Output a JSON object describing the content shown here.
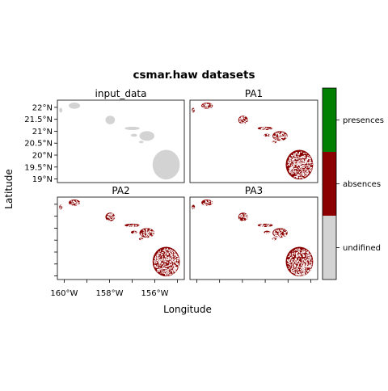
{
  "title": "csmar.haw datasets",
  "xlabel": "Longitude",
  "ylabel": "Latitude",
  "panels": [
    {
      "id": "input_data",
      "label": "input_data",
      "mode": "undefined"
    },
    {
      "id": "PA1",
      "label": "PA1",
      "mode": "pa"
    },
    {
      "id": "PA2",
      "label": "PA2",
      "mode": "pa"
    },
    {
      "id": "PA3",
      "label": "PA3",
      "mode": "pa"
    }
  ],
  "lat_ticks": [
    "22°N",
    "21.5°N",
    "21°N",
    "20.5°N",
    "20°N",
    "19.5°N",
    "19°N"
  ],
  "lon_ticks": [
    "160°W",
    "158°W",
    "156°W"
  ],
  "legend": [
    {
      "label": "presences",
      "color": "#008000"
    },
    {
      "label": "absences",
      "color": "#8b0000"
    },
    {
      "label": "undifined",
      "color": "#d3d3d3"
    }
  ],
  "colors": {
    "land": "#d3d3d3",
    "absence": "#8b0000",
    "presence": "#008000",
    "frame": "#000000"
  },
  "chart_data": {
    "type": "heatmap",
    "title": "csmar.haw datasets",
    "xlabel": "Longitude",
    "ylabel": "Latitude",
    "xlim": [
      -160.3,
      -154.7
    ],
    "ylim": [
      18.85,
      22.3
    ],
    "islands": [
      {
        "lon": -159.55,
        "lat": 22.07,
        "rx": 0.25,
        "ry": 0.13
      },
      {
        "lon": -160.15,
        "lat": 21.88,
        "rx": 0.07,
        "ry": 0.1
      },
      {
        "lon": -157.97,
        "lat": 21.47,
        "rx": 0.21,
        "ry": 0.18
      },
      {
        "lon": -157.0,
        "lat": 21.12,
        "rx": 0.33,
        "ry": 0.07
      },
      {
        "lon": -156.92,
        "lat": 20.83,
        "rx": 0.14,
        "ry": 0.06
      },
      {
        "lon": -156.35,
        "lat": 20.8,
        "rx": 0.33,
        "ry": 0.2
      },
      {
        "lon": -156.6,
        "lat": 20.55,
        "rx": 0.1,
        "ry": 0.05
      },
      {
        "lon": -155.5,
        "lat": 19.6,
        "rx": 0.6,
        "ry": 0.62
      }
    ]
  }
}
